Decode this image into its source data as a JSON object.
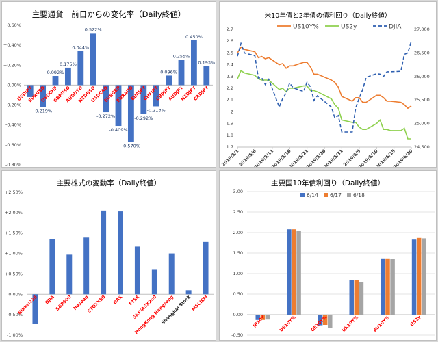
{
  "chart_data": [
    {
      "type": "bar",
      "title": "主要通貨　前日からの変化率（Daily終値）",
      "categories": [
        "USDJPY",
        "EURUSD",
        "USDCHF",
        "GBPUSD",
        "AUDUSD",
        "NZDUSD",
        "USDCAD",
        "EURGBP",
        "EURAUD",
        "EURJPY",
        "CHFJPY",
        "GBPJPY",
        "AUDJPY",
        "NZDJPY",
        "CADJPY"
      ],
      "values": [
        -0.12,
        -0.219,
        0.092,
        0.175,
        0.344,
        0.522,
        -0.272,
        -0.409,
        -0.57,
        -0.292,
        -0.213,
        0.096,
        0.255,
        0.45,
        0.193
      ],
      "value_labels": [
        "",
        "-0.219%",
        "0.092%",
        "0.175%",
        "0.344%",
        "0.522%",
        "-0.272%",
        "-0.409%",
        "-0.570%",
        "-0.292%",
        "-0.213%",
        "0.096%",
        "0.255%",
        "0.450%",
        "0.193%"
      ],
      "category_colors": [
        "red",
        "red",
        "red",
        "red",
        "red",
        "red",
        "red",
        "red",
        "red",
        "red",
        "red",
        "red",
        "red",
        "red",
        "red"
      ],
      "ylim": [
        -0.8,
        0.6
      ],
      "yticks": [
        -0.8,
        -0.6,
        -0.4,
        -0.2,
        0.0,
        0.2,
        0.4,
        0.6
      ],
      "ytick_labels": [
        "-0.80%",
        "-0.60%",
        "-0.40%",
        "-0.20%",
        "0.00%",
        "+0.20%",
        "+0.40%",
        "+0.60%"
      ],
      "bar_color": "#4472c4",
      "label_color": "#1f3864",
      "grid": false
    },
    {
      "type": "line",
      "title": "米10年債と2年債の債利回り（Daily終値）",
      "x": [
        "2019/5/1",
        "2019/5/2",
        "2019/5/3",
        "2019/5/6",
        "2019/5/7",
        "2019/5/8",
        "2019/5/9",
        "2019/5/10",
        "2019/5/13",
        "2019/5/14",
        "2019/5/15",
        "2019/5/16",
        "2019/5/17",
        "2019/5/20",
        "2019/5/21",
        "2019/5/22",
        "2019/5/23",
        "2019/5/24",
        "2019/5/28",
        "2019/5/29",
        "2019/5/30",
        "2019/5/31",
        "2019/6/3",
        "2019/6/4",
        "2019/6/5",
        "2019/6/6",
        "2019/6/7",
        "2019/6/10",
        "2019/6/11",
        "2019/6/12",
        "2019/6/13",
        "2019/6/14",
        "2019/6/17",
        "2019/6/18",
        "2019/6/19",
        "2019/6/20"
      ],
      "xtick_labels": [
        "2019/5/1",
        "2019/5/6",
        "2019/5/11",
        "2019/5/16",
        "2019/5/21",
        "2019/5/26",
        "2019/5/31",
        "2019/6/5",
        "2019/6/10",
        "2019/6/15",
        "2019/6/20"
      ],
      "series": [
        {
          "name": "US10Y%",
          "axis": "left",
          "color": "#ed7d31",
          "dash": "",
          "values": [
            2.5,
            2.55,
            2.53,
            2.51,
            2.46,
            2.47,
            2.45,
            2.46,
            2.4,
            2.41,
            2.37,
            2.39,
            2.39,
            2.42,
            2.42,
            2.38,
            2.32,
            2.32,
            2.27,
            2.25,
            2.21,
            2.13,
            2.09,
            2.12,
            2.12,
            2.08,
            2.08,
            2.14,
            2.14,
            2.12,
            2.09,
            2.09,
            2.08,
            2.06,
            2.03,
            2.05
          ]
        },
        {
          "name": "US2y",
          "axis": "left",
          "color": "#8fd14f",
          "dash": "",
          "values": [
            2.28,
            2.35,
            2.33,
            2.31,
            2.28,
            2.27,
            2.27,
            2.27,
            2.19,
            2.2,
            2.17,
            2.2,
            2.2,
            2.22,
            2.22,
            2.18,
            2.18,
            2.17,
            2.11,
            2.06,
            2.03,
            1.93,
            1.91,
            1.91,
            1.87,
            1.85,
            1.85,
            1.9,
            1.93,
            1.85,
            1.85,
            1.84,
            1.84,
            1.86,
            1.77,
            1.77
          ]
        },
        {
          "name": "DJIA",
          "axis": "right",
          "color": "#2e5fb0",
          "dash": "5,3",
          "values": [
            26430,
            26700,
            26500,
            26440,
            25970,
            25970,
            25830,
            25940,
            25350,
            25530,
            25650,
            25860,
            25760,
            25680,
            25880,
            25780,
            25490,
            25590,
            25350,
            25120,
            25170,
            24820,
            24820,
            25330,
            25540,
            25720,
            25980,
            26060,
            26050,
            26000,
            26100,
            26100,
            26110,
            26470,
            26500,
            26750
          ]
        }
      ],
      "ylim_left": [
        1.7,
        2.7
      ],
      "yticks_left": [
        1.7,
        1.8,
        1.9,
        2.0,
        2.1,
        2.2,
        2.3,
        2.4,
        2.5,
        2.6,
        2.7
      ],
      "ytick_labels_left": [
        "1.7",
        "1.8",
        "1.9",
        "2",
        "2.1",
        "2.2",
        "2.3",
        "2.4",
        "2.5",
        "2.6",
        "2.7"
      ],
      "ylim_right": [
        24500,
        27000
      ],
      "yticks_right": [
        24500,
        25000,
        25500,
        26000,
        26500,
        27000
      ],
      "ytick_labels_right": [
        "24,500",
        "25,000",
        "25,500",
        "26,000",
        "26,500",
        "27,000"
      ],
      "legend": "top",
      "grid": false
    },
    {
      "type": "bar",
      "title": "主要株式の変動率（Daily終値）",
      "categories": [
        "Nikkei225",
        "DJIA",
        "S&P500",
        "Nasdaq",
        "STOXX50",
        "DAX",
        "FTSE",
        "S&P/ASX200",
        "HongKong Hangseng",
        "Shanghai Stock",
        "MSCIEM"
      ],
      "values": [
        -0.72,
        1.35,
        0.97,
        1.39,
        2.05,
        2.03,
        1.17,
        0.6,
        1.0,
        0.1,
        1.28
      ],
      "category_colors": [
        "red",
        "red",
        "red",
        "red",
        "red",
        "red",
        "red",
        "red",
        "red",
        "#1f1f1f",
        "red"
      ],
      "ylim": [
        -1.0,
        2.5
      ],
      "yticks": [
        -1.0,
        -0.5,
        0.0,
        0.5,
        1.0,
        1.5,
        2.0,
        2.5
      ],
      "ytick_labels": [
        "-1.00%",
        "-0.50%",
        "0.00%",
        "+0.50%",
        "+1.00%",
        "+1.50%",
        "+2.00%",
        "+2.50%"
      ],
      "bar_color": "#4472c4",
      "grid": false
    },
    {
      "type": "bar",
      "title": "主要国10年債利回り（Daily終値）",
      "categories": [
        "JP10Y",
        "US10Y%",
        "GE10Y%",
        "UK10Y%",
        "AU10Y%",
        "US2y"
      ],
      "category_colors": [
        "red",
        "red",
        "red",
        "red",
        "red",
        "red"
      ],
      "series": [
        {
          "name": "6/14",
          "color": "#4472c4",
          "values": [
            -0.13,
            2.08,
            -0.26,
            0.84,
            1.37,
            1.83
          ]
        },
        {
          "name": "6/17",
          "color": "#ed7d31",
          "values": [
            -0.13,
            2.08,
            -0.25,
            0.84,
            1.37,
            1.87
          ]
        },
        {
          "name": "6/18",
          "color": "#a5a5a5",
          "values": [
            -0.12,
            2.05,
            -0.32,
            0.8,
            1.36,
            1.86
          ]
        }
      ],
      "ylim": [
        -0.5,
        3.0
      ],
      "yticks": [
        -0.5,
        0.0,
        0.5,
        1.0,
        1.5,
        2.0,
        2.5,
        3.0
      ],
      "ytick_labels": [
        "-0.50",
        "0.00",
        "0.50",
        "1.00",
        "1.50",
        "2.00",
        "2.50",
        "3.00"
      ],
      "legend": "top",
      "grid": true
    }
  ]
}
